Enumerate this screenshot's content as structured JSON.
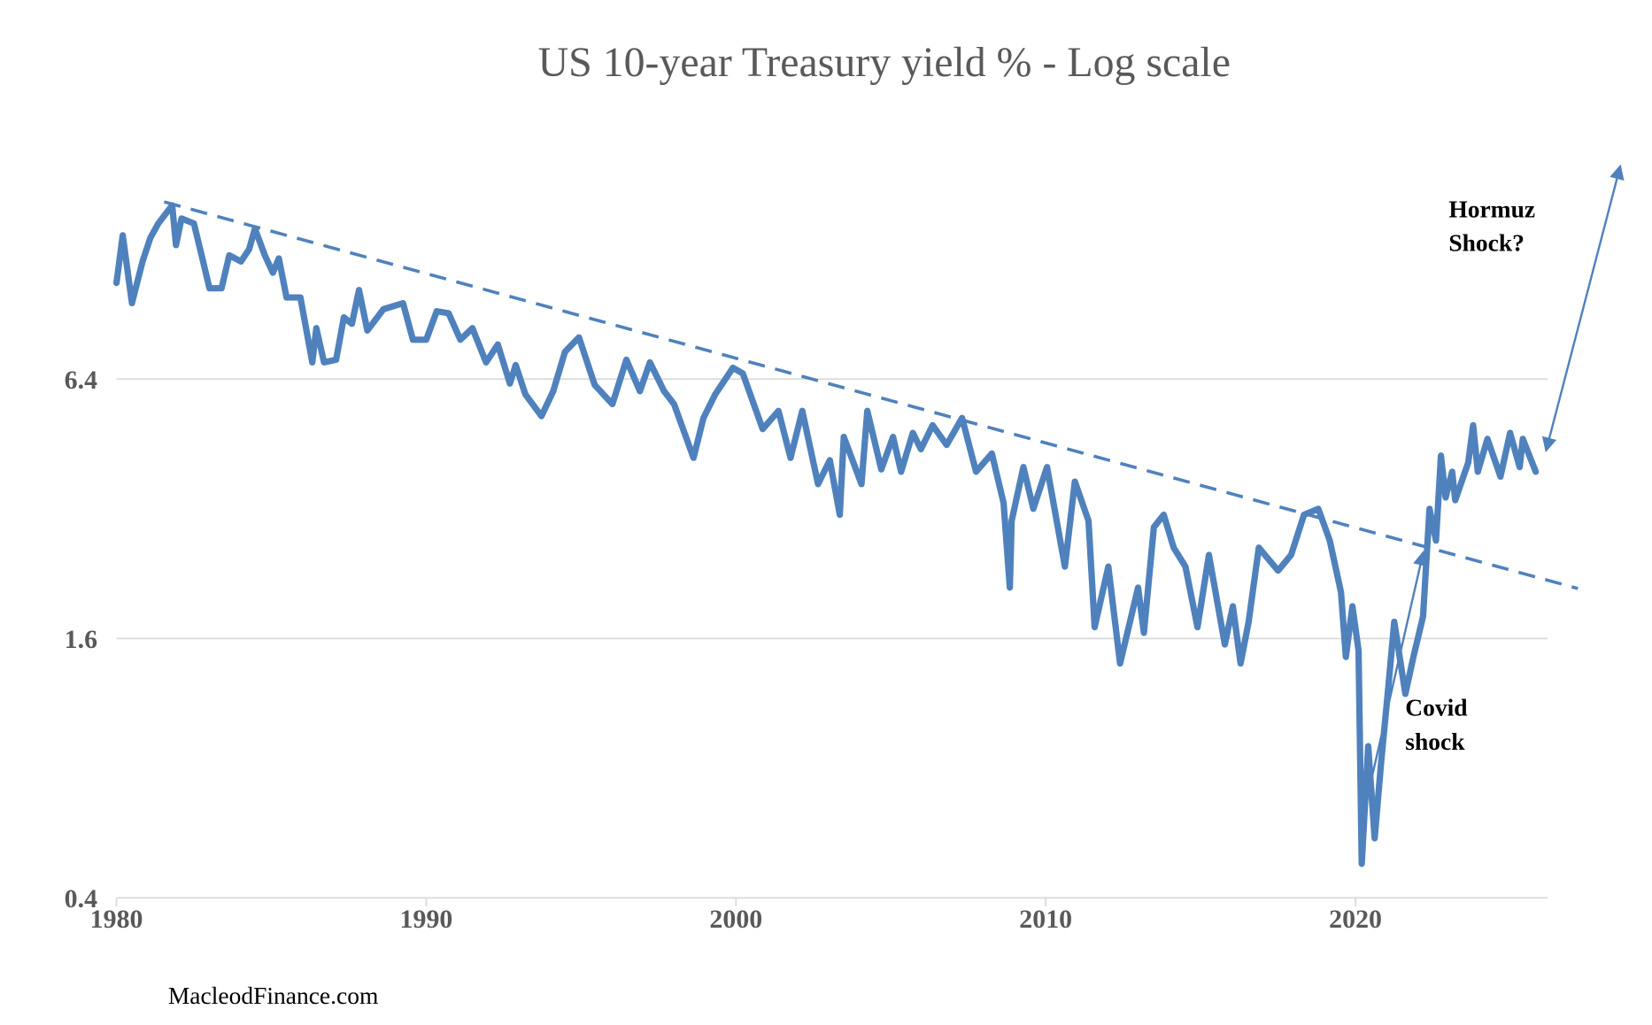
{
  "chart_data": {
    "type": "line",
    "title": "US 10-year Treasury yield % - Log scale",
    "xlabel": "",
    "ylabel": "",
    "y_scale": "log",
    "grid": "horizontal",
    "legend": "none",
    "xlim": [
      1980,
      2026.2
    ],
    "ylim": [
      0.4,
      22
    ],
    "xticks": [
      "1980",
      "1990",
      "2000",
      "2010",
      "2020"
    ],
    "yticks": [
      "0.4",
      "1.6",
      "6.4"
    ],
    "colors": {
      "series": "#4F81BD",
      "grid": "#D9D9D9",
      "title": "#595959"
    },
    "series": [
      {
        "points": [
          [
            1980.0,
            10.7
          ],
          [
            1980.2,
            13.8
          ],
          [
            1980.5,
            9.6
          ],
          [
            1980.84,
            12.0
          ],
          [
            1981.09,
            13.6
          ],
          [
            1981.35,
            14.7
          ],
          [
            1981.8,
            16.2
          ],
          [
            1981.92,
            13.1
          ],
          [
            1982.1,
            15.1
          ],
          [
            1982.5,
            14.7
          ],
          [
            1982.75,
            12.4
          ],
          [
            1983.0,
            10.4
          ],
          [
            1983.39,
            10.4
          ],
          [
            1983.64,
            12.4
          ],
          [
            1984.02,
            12.0
          ],
          [
            1984.28,
            12.8
          ],
          [
            1984.47,
            14.3
          ],
          [
            1984.79,
            12.4
          ],
          [
            1985.05,
            11.3
          ],
          [
            1985.24,
            12.2
          ],
          [
            1985.49,
            9.9
          ],
          [
            1985.94,
            9.9
          ],
          [
            1986.32,
            7.0
          ],
          [
            1986.45,
            8.4
          ],
          [
            1986.7,
            7.0
          ],
          [
            1987.09,
            7.1
          ],
          [
            1987.34,
            8.9
          ],
          [
            1987.6,
            8.6
          ],
          [
            1987.83,
            10.3
          ],
          [
            1988.1,
            8.3
          ],
          [
            1988.62,
            9.3
          ],
          [
            1989.25,
            9.6
          ],
          [
            1989.57,
            7.9
          ],
          [
            1990.0,
            7.9
          ],
          [
            1990.34,
            9.2
          ],
          [
            1990.72,
            9.1
          ],
          [
            1991.1,
            7.9
          ],
          [
            1991.49,
            8.4
          ],
          [
            1991.93,
            7.0
          ],
          [
            1992.31,
            7.7
          ],
          [
            1992.7,
            6.25
          ],
          [
            1992.89,
            6.9
          ],
          [
            1993.2,
            5.9
          ],
          [
            1993.72,
            5.25
          ],
          [
            1994.1,
            6.0
          ],
          [
            1994.48,
            7.4
          ],
          [
            1994.93,
            8.0
          ],
          [
            1995.44,
            6.2
          ],
          [
            1996.01,
            5.6
          ],
          [
            1996.46,
            7.1
          ],
          [
            1996.9,
            6.0
          ],
          [
            1997.22,
            7.0
          ],
          [
            1997.68,
            6.0
          ],
          [
            1998.0,
            5.6
          ],
          [
            1998.63,
            4.2
          ],
          [
            1998.95,
            5.2
          ],
          [
            1999.33,
            5.9
          ],
          [
            1999.9,
            6.8
          ],
          [
            2000.22,
            6.6
          ],
          [
            2000.86,
            4.9
          ],
          [
            2001.37,
            5.4
          ],
          [
            2001.76,
            4.2
          ],
          [
            2002.14,
            5.4
          ],
          [
            2002.65,
            3.65
          ],
          [
            2003.03,
            4.15
          ],
          [
            2003.35,
            3.1
          ],
          [
            2003.48,
            4.7
          ],
          [
            2004.05,
            3.65
          ],
          [
            2004.24,
            5.4
          ],
          [
            2004.69,
            3.95
          ],
          [
            2005.07,
            4.7
          ],
          [
            2005.33,
            3.9
          ],
          [
            2005.71,
            4.8
          ],
          [
            2005.97,
            4.4
          ],
          [
            2006.35,
            5.0
          ],
          [
            2006.8,
            4.5
          ],
          [
            2007.3,
            5.2
          ],
          [
            2007.75,
            3.9
          ],
          [
            2008.26,
            4.3
          ],
          [
            2008.64,
            3.3
          ],
          [
            2008.84,
            2.1
          ],
          [
            2008.9,
            3.0
          ],
          [
            2009.28,
            4.0
          ],
          [
            2009.6,
            3.2
          ],
          [
            2010.04,
            4.0
          ],
          [
            2010.62,
            2.35
          ],
          [
            2010.94,
            3.7
          ],
          [
            2011.38,
            3.0
          ],
          [
            2011.58,
            1.7
          ],
          [
            2012.02,
            2.35
          ],
          [
            2012.4,
            1.4
          ],
          [
            2012.98,
            2.1
          ],
          [
            2013.17,
            1.65
          ],
          [
            2013.49,
            2.9
          ],
          [
            2013.81,
            3.1
          ],
          [
            2014.13,
            2.6
          ],
          [
            2014.51,
            2.35
          ],
          [
            2014.9,
            1.7
          ],
          [
            2015.27,
            2.5
          ],
          [
            2015.78,
            1.55
          ],
          [
            2016.04,
            1.9
          ],
          [
            2016.29,
            1.4
          ],
          [
            2016.55,
            1.75
          ],
          [
            2016.88,
            2.6
          ],
          [
            2017.5,
            2.3
          ],
          [
            2017.92,
            2.5
          ],
          [
            2018.34,
            3.1
          ],
          [
            2018.8,
            3.2
          ],
          [
            2019.17,
            2.7
          ],
          [
            2019.53,
            2.05
          ],
          [
            2019.69,
            1.45
          ],
          [
            2019.9,
            1.9
          ],
          [
            2020.1,
            1.5
          ],
          [
            2020.2,
            0.48
          ],
          [
            2020.41,
            0.9
          ],
          [
            2020.62,
            0.55
          ],
          [
            2020.83,
            0.83
          ],
          [
            2021.04,
            1.19
          ],
          [
            2021.25,
            1.75
          ],
          [
            2021.61,
            1.19
          ],
          [
            2021.87,
            1.45
          ],
          [
            2022.18,
            1.8
          ],
          [
            2022.39,
            3.2
          ],
          [
            2022.6,
            2.7
          ],
          [
            2022.76,
            4.25
          ],
          [
            2022.91,
            3.4
          ],
          [
            2023.12,
            3.9
          ],
          [
            2023.22,
            3.35
          ],
          [
            2023.64,
            4.1
          ],
          [
            2023.8,
            5.0
          ],
          [
            2023.95,
            3.9
          ],
          [
            2024.26,
            4.65
          ],
          [
            2024.68,
            3.8
          ],
          [
            2024.99,
            4.8
          ],
          [
            2025.3,
            4.0
          ],
          [
            2025.4,
            4.65
          ],
          [
            2025.82,
            3.9
          ]
        ]
      }
    ],
    "trendline": {
      "style": "dashed",
      "from": [
        1981.54,
        16.5
      ],
      "to": [
        2027.18,
        2.09
      ]
    },
    "annotations": [
      {
        "lines": [
          "Hormuz",
          "Shock?"
        ],
        "arrow_from": [
          2026.15,
          4.36
        ],
        "arrow_to": [
          2028.55,
          20.0
        ],
        "double_headed": true
      },
      {
        "lines": [
          "Covid",
          "shock"
        ],
        "arrow_from": [
          2020.2,
          0.6
        ],
        "arrow_to": [
          2022.19,
          2.54
        ]
      }
    ],
    "watermark": "MacleodFinance.com"
  }
}
